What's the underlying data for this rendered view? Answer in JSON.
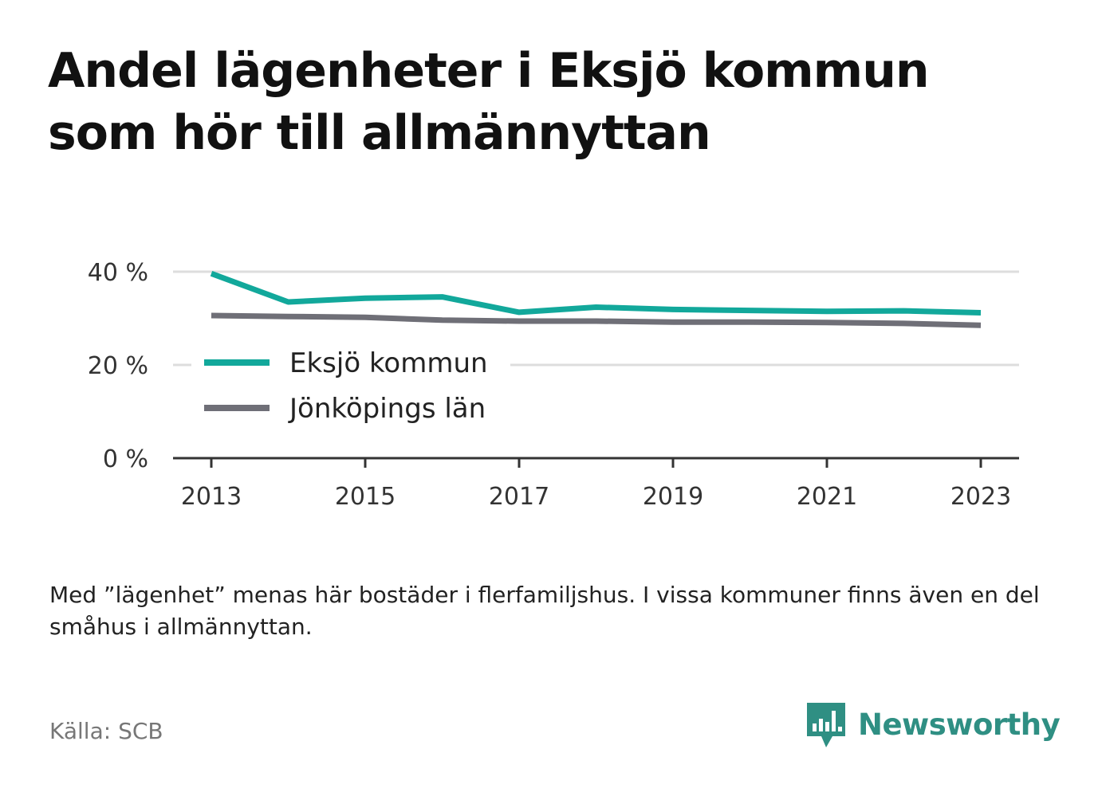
{
  "title": "Andel lägenheter i Eksjö kommun som hör till allmännyttan",
  "note": "Med ”lägenhet” menas här bostäder i flerfamiljshus. I vissa kommuner finns även en del småhus i allmännyttan.",
  "source": "Källa: SCB",
  "brand": {
    "name": "Newsworthy",
    "logo_icon": "chart-bars-icon",
    "color": "#2f8f83"
  },
  "chart_data": {
    "type": "line",
    "x": [
      2013,
      2014,
      2015,
      2016,
      2017,
      2018,
      2019,
      2020,
      2021,
      2022,
      2023
    ],
    "x_ticks": [
      "2013",
      "2015",
      "2017",
      "2019",
      "2021",
      "2023"
    ],
    "y_ticks": [
      "0 %",
      "20 %",
      "40 %"
    ],
    "ylim": [
      0,
      40
    ],
    "grid": true,
    "legend_position": "center-left",
    "series": [
      {
        "name": "Eksjö kommun",
        "color": "#12a89b",
        "values": [
          39.6,
          33.5,
          34.3,
          34.6,
          31.3,
          32.4,
          31.9,
          31.7,
          31.5,
          31.6,
          31.2
        ]
      },
      {
        "name": "Jönköpings län",
        "color": "#6f6f77",
        "values": [
          30.6,
          30.4,
          30.2,
          29.6,
          29.4,
          29.4,
          29.2,
          29.2,
          29.1,
          28.9,
          28.5
        ]
      }
    ]
  }
}
